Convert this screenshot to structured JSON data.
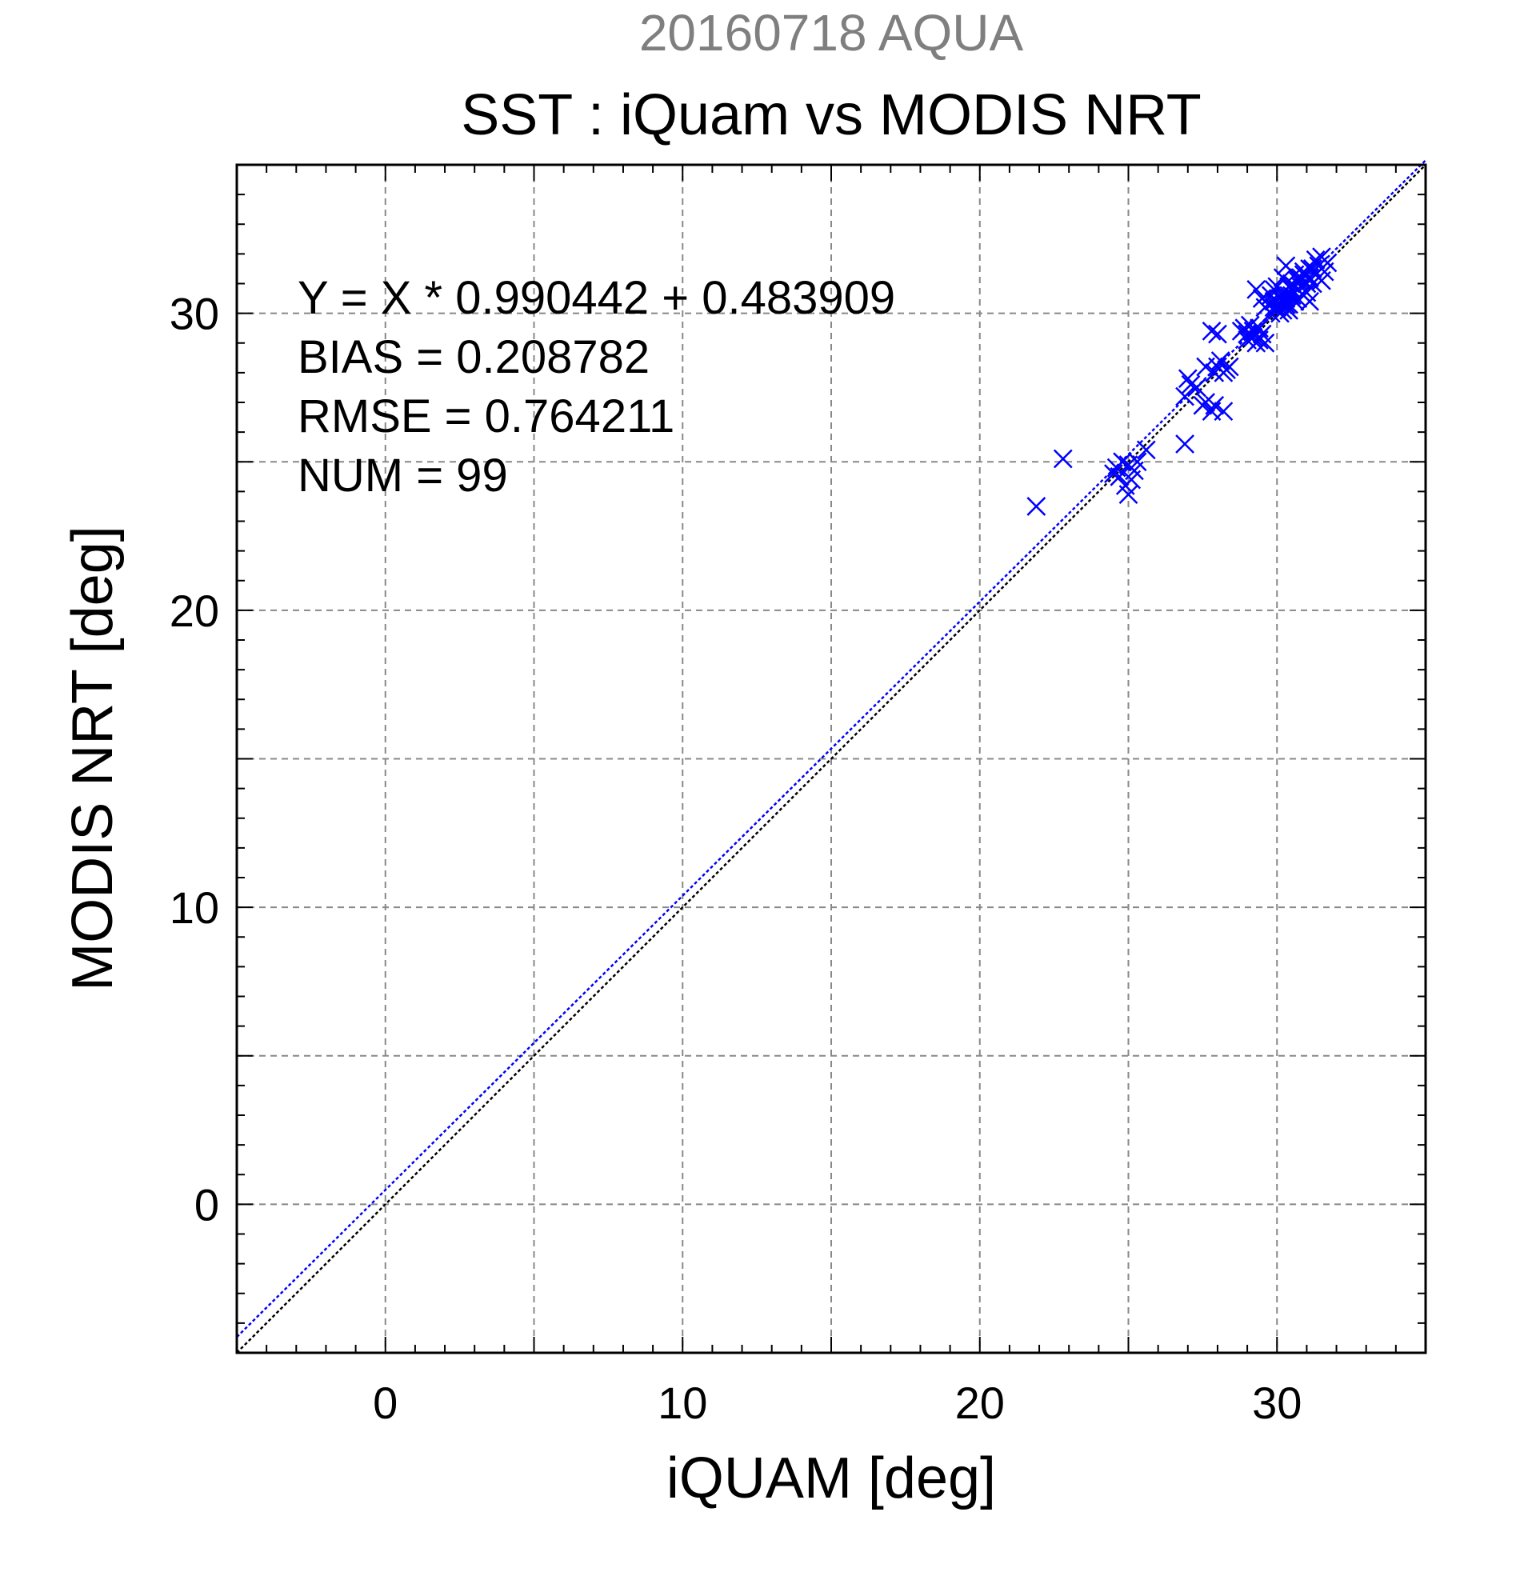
{
  "chart_data": {
    "type": "scatter",
    "supertitle": "20160718 AQUA",
    "title": "SST : iQuam vs MODIS NRT",
    "xlabel": "iQUAM [deg]",
    "ylabel": "MODIS NRT [deg]",
    "xlim": [
      -5,
      35
    ],
    "ylim": [
      -5,
      35
    ],
    "xticks": [
      0,
      10,
      20,
      30
    ],
    "yticks": [
      0,
      10,
      20,
      30
    ],
    "grid": true,
    "annotations": [
      "Y = X * 0.990442 + 0.483909",
      "BIAS = 0.208782",
      "RMSE = 0.764211",
      "NUM = 99"
    ],
    "lines": [
      {
        "kind": "identity",
        "slope": 1,
        "intercept": 0,
        "color": "#000000"
      },
      {
        "kind": "regression",
        "slope": 0.990442,
        "intercept": 0.483909,
        "color": "#0000ff"
      }
    ],
    "marker": {
      "shape": "x",
      "color": "#0000ff"
    },
    "points": [
      [
        21.9,
        23.5
      ],
      [
        22.8,
        25.1
      ],
      [
        24.5,
        24.6
      ],
      [
        24.6,
        24.8
      ],
      [
        24.7,
        24.5
      ],
      [
        24.8,
        25.0
      ],
      [
        24.9,
        24.2
      ],
      [
        25.0,
        24.9
      ],
      [
        25.0,
        23.9
      ],
      [
        25.1,
        24.4
      ],
      [
        25.2,
        24.7
      ],
      [
        25.3,
        25.0
      ],
      [
        25.6,
        25.4
      ],
      [
        26.9,
        25.6
      ],
      [
        26.9,
        27.2
      ],
      [
        27.0,
        27.8
      ],
      [
        27.1,
        27.6
      ],
      [
        27.3,
        27.5
      ],
      [
        27.5,
        26.9
      ],
      [
        27.6,
        28.2
      ],
      [
        27.6,
        27.0
      ],
      [
        27.8,
        26.7
      ],
      [
        27.8,
        29.4
      ],
      [
        27.9,
        26.9
      ],
      [
        27.9,
        28.0
      ],
      [
        28.0,
        29.3
      ],
      [
        28.0,
        28.2
      ],
      [
        28.1,
        28.4
      ],
      [
        28.2,
        26.7
      ],
      [
        28.2,
        28.0
      ],
      [
        28.3,
        28.1
      ],
      [
        28.4,
        28.2
      ],
      [
        28.8,
        29.4
      ],
      [
        28.9,
        29.5
      ],
      [
        29.0,
        29.3
      ],
      [
        29.0,
        29.1
      ],
      [
        29.1,
        29.6
      ],
      [
        29.2,
        29.4
      ],
      [
        29.2,
        29.2
      ],
      [
        29.3,
        29.0
      ],
      [
        29.3,
        30.8
      ],
      [
        29.4,
        29.5
      ],
      [
        29.4,
        29.1
      ],
      [
        29.5,
        29.3
      ],
      [
        29.5,
        30.5
      ],
      [
        29.6,
        30.2
      ],
      [
        29.6,
        29.0
      ],
      [
        29.7,
        30.3
      ],
      [
        29.8,
        30.6
      ],
      [
        29.8,
        30.0
      ],
      [
        29.9,
        30.8
      ],
      [
        29.9,
        30.4
      ],
      [
        30.0,
        30.2
      ],
      [
        30.0,
        30.9
      ],
      [
        30.1,
        30.5
      ],
      [
        30.1,
        30.0
      ],
      [
        30.2,
        31.2
      ],
      [
        30.2,
        30.7
      ],
      [
        30.3,
        30.3
      ],
      [
        30.3,
        31.6
      ],
      [
        30.4,
        30.9
      ],
      [
        30.4,
        30.1
      ],
      [
        30.5,
        30.6
      ],
      [
        30.5,
        31.0
      ],
      [
        30.6,
        30.4
      ],
      [
        30.6,
        31.3
      ],
      [
        30.7,
        30.8
      ],
      [
        30.7,
        30.5
      ],
      [
        30.8,
        31.1
      ],
      [
        30.8,
        30.9
      ],
      [
        30.9,
        30.6
      ],
      [
        30.9,
        31.4
      ],
      [
        31.0,
        31.0
      ],
      [
        31.0,
        30.7
      ],
      [
        31.1,
        31.2
      ],
      [
        31.1,
        30.4
      ],
      [
        31.2,
        31.5
      ],
      [
        31.2,
        31.0
      ],
      [
        31.3,
        31.8
      ],
      [
        31.3,
        31.3
      ],
      [
        31.4,
        31.6
      ],
      [
        31.5,
        31.1
      ],
      [
        31.5,
        31.9
      ],
      [
        31.6,
        31.4
      ],
      [
        31.7,
        31.7
      ],
      [
        30.0,
        30.1
      ],
      [
        30.2,
        30.4
      ],
      [
        30.4,
        30.6
      ],
      [
        30.6,
        30.9
      ],
      [
        30.8,
        31.2
      ],
      [
        29.9,
        30.2
      ],
      [
        30.1,
        30.3
      ],
      [
        30.3,
        30.5
      ],
      [
        30.5,
        30.8
      ],
      [
        30.7,
        31.1
      ],
      [
        30.9,
        31.3
      ],
      [
        31.1,
        31.5
      ],
      [
        30.2,
        30.1
      ],
      [
        30.4,
        30.3
      ]
    ]
  }
}
